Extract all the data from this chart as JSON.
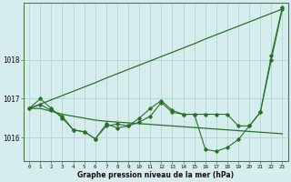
{
  "x": [
    0,
    1,
    2,
    3,
    4,
    5,
    6,
    7,
    8,
    9,
    10,
    11,
    12,
    13,
    14,
    15,
    16,
    17,
    18,
    19,
    20,
    21,
    22,
    23
  ],
  "line_diagonal": [
    1016.75,
    1016.86,
    1016.97,
    1017.08,
    1017.19,
    1017.3,
    1017.41,
    1017.53,
    1017.64,
    1017.75,
    1017.86,
    1017.97,
    1018.08,
    1018.19,
    1018.3,
    1018.41,
    1018.53,
    1018.64,
    1018.75,
    1018.86,
    1018.97,
    1019.08,
    1019.19,
    1019.3
  ],
  "line_flat": [
    1016.75,
    1016.75,
    1016.68,
    1016.6,
    1016.55,
    1016.5,
    1016.45,
    1016.42,
    1016.4,
    1016.38,
    1016.36,
    1016.34,
    1016.32,
    1016.3,
    1016.28,
    1016.26,
    1016.24,
    1016.22,
    1016.2,
    1016.18,
    1016.16,
    1016.14,
    1016.12,
    1016.1
  ],
  "line_data1": [
    1016.75,
    1017.0,
    1016.75,
    1016.5,
    1016.2,
    1016.15,
    1015.97,
    1016.35,
    1016.25,
    1016.3,
    1016.5,
    1016.75,
    1016.95,
    1016.7,
    1016.6,
    1016.6,
    1015.7,
    1015.65,
    1015.75,
    1015.95,
    1016.3,
    1016.65,
    1018.0,
    1019.3
  ],
  "line_data2": [
    1016.75,
    1016.85,
    1016.7,
    1016.55,
    1016.2,
    1016.15,
    1015.97,
    1016.3,
    1016.35,
    1016.3,
    1016.4,
    1016.55,
    1016.9,
    1016.65,
    1016.6,
    1016.6,
    1016.6,
    1016.6,
    1016.6,
    1016.3,
    1016.3,
    1016.65,
    1018.1,
    1019.35
  ],
  "bg_color": "#d5eeed",
  "grid_color": "#b8d8d5",
  "line_color": "#2d6e2d",
  "xlabel": "Graphe pression niveau de la mer (hPa)",
  "ylim": [
    1015.4,
    1019.45
  ],
  "yticks": [
    1016,
    1017,
    1018
  ],
  "xlim": [
    -0.5,
    23.5
  ]
}
